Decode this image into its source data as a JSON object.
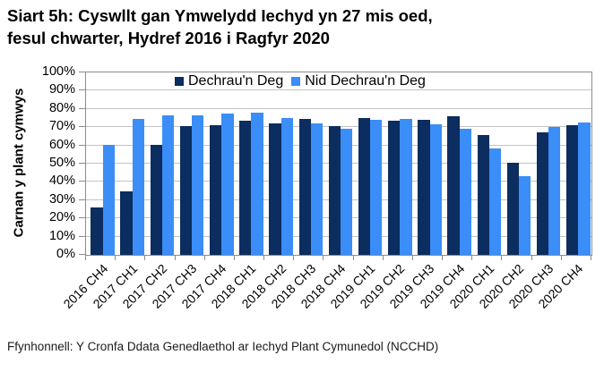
{
  "title": "Siart 5h: Cyswllt gan Ymwelydd Iechyd yn 27 mis oed,\nfesul chwarter, Hydref 2016 i Ragfyr 2020",
  "source": "Ffynhonnell: Y Cronfa Ddata Genedlaethol ar Iechyd Plant Cymunedol (NCCHD)",
  "chart_data": {
    "type": "bar",
    "title": "Siart 5h: Cyswllt gan Ymwelydd Iechyd yn 27 mis oed, fesul chwarter, Hydref 2016 i Ragfyr 2020",
    "ylabel": "Carnan y plant cymwys",
    "xlabel": "",
    "ylim": [
      0,
      100
    ],
    "ytick_step": 10,
    "yticks": [
      "0%",
      "10%",
      "20%",
      "30%",
      "40%",
      "50%",
      "60%",
      "70%",
      "80%",
      "90%",
      "100%"
    ],
    "grid": "horizontal",
    "legend_position": "top-inside",
    "categories": [
      "2016 CH4",
      "2017 CH1",
      "2017 CH2",
      "2017 CH3",
      "2017 CH4",
      "2018 CH1",
      "2018 CH2",
      "2018 CH3",
      "2018 CH4",
      "2019 CH1",
      "2019 CH2",
      "2019 CH3",
      "2019 CH4",
      "2020 CH1",
      "2020 CH2",
      "2020 CH3",
      "2020 CH4"
    ],
    "series": [
      {
        "name": "Dechrau'n Deg",
        "color": "#0B2D5F",
        "values": [
          26,
          35,
          60.5,
          70.5,
          71,
          73.5,
          72,
          74.5,
          70.5,
          75,
          73.5,
          74,
          76,
          65.5,
          50.5,
          67,
          71
        ]
      },
      {
        "name": "Nid Dechrau'n Deg",
        "color": "#3B8DF8",
        "values": [
          60.5,
          74.5,
          76.5,
          76.5,
          77.5,
          78,
          75,
          72,
          69,
          74,
          74.5,
          71.5,
          69,
          58.5,
          43,
          70,
          72.5
        ]
      }
    ],
    "colors": {
      "gridline": "#C3C3C3",
      "axis": "#8C8C8C",
      "text": "#000000"
    }
  }
}
